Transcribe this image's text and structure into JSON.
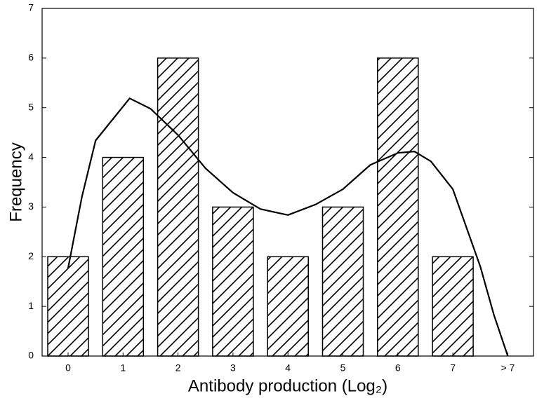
{
  "chart_data": {
    "type": "bar",
    "x_label": "Antibody production (Log₂)",
    "y_label": "Frequency",
    "categories": [
      "0",
      "1",
      "2",
      "3",
      "4",
      "5",
      "6",
      "7",
      "> 7"
    ],
    "values": [
      2,
      4,
      6,
      3,
      2,
      3,
      6,
      2,
      0
    ],
    "color": "#000000",
    "hatch": true,
    "ylim": [
      0,
      7
    ],
    "yticks": [
      0,
      1,
      2,
      3,
      4,
      5,
      6,
      7
    ],
    "curve": {
      "x": [
        0,
        0.25,
        0.5,
        1.12,
        1.5,
        2,
        2.5,
        3,
        3.5,
        4,
        4.5,
        5,
        5.5,
        6,
        6.3,
        6.6,
        7,
        7.5,
        7.75,
        8
      ],
      "values": [
        1.77,
        3.2,
        4.34,
        5.19,
        4.98,
        4.45,
        3.78,
        3.29,
        2.96,
        2.84,
        3.05,
        3.36,
        3.85,
        4.09,
        4.12,
        3.92,
        3.36,
        1.8,
        0.82,
        0
      ],
      "color": "#000000"
    }
  }
}
